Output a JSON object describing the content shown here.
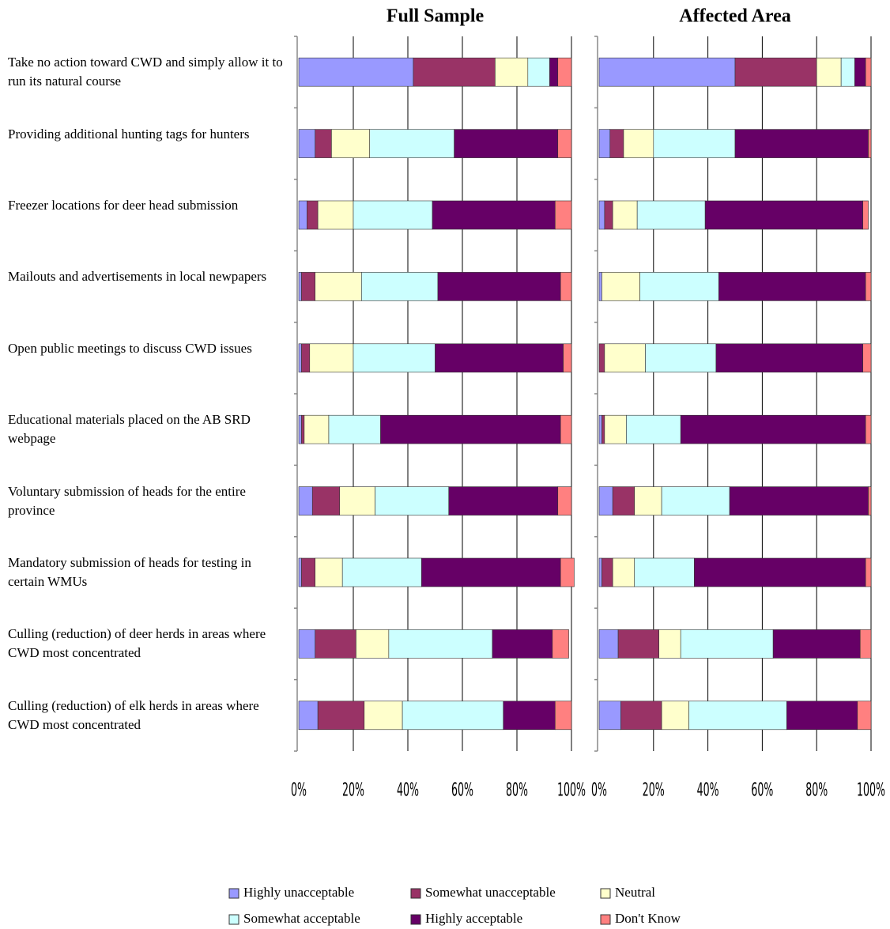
{
  "chart_data": [
    {
      "type": "bar",
      "orientation": "horizontal",
      "stacked": true,
      "title": "Full Sample",
      "categories": [
        "Take no action toward CWD and simply allow it to run its natural course",
        "Providing additional hunting tags for hunters",
        "Freezer locations for deer head submission",
        "Mailouts and advertisements in local newpapers",
        "Open public meetings to discuss CWD issues",
        "Educational materials placed on the AB SRD webpage",
        "Voluntary submission of heads for the entire province",
        "Mandatory submission of heads for testing in certain WMUs",
        "Culling (reduction) of deer herds in areas where CWD most concentrated",
        "Culling (reduction) of elk herds in areas where CWD most concentrated"
      ],
      "series": [
        {
          "name": "Highly unacceptable",
          "color": "#9999ff",
          "values": [
            42,
            6,
            3,
            1,
            1,
            1,
            5,
            1,
            6,
            7
          ]
        },
        {
          "name": "Somewhat unacceptable",
          "color": "#993366",
          "values": [
            30,
            6,
            4,
            5,
            3,
            1,
            10,
            5,
            15,
            17
          ]
        },
        {
          "name": "Neutral",
          "color": "#ffffcc",
          "values": [
            12,
            14,
            13,
            17,
            16,
            9,
            13,
            10,
            12,
            14
          ]
        },
        {
          "name": "Somewhat acceptable",
          "color": "#ccffff",
          "values": [
            8,
            31,
            29,
            28,
            30,
            19,
            27,
            29,
            38,
            37
          ]
        },
        {
          "name": "Highly acceptable",
          "color": "#660066",
          "values": [
            3,
            38,
            45,
            45,
            47,
            66,
            40,
            51,
            22,
            19
          ]
        },
        {
          "name": "Don't Know",
          "color": "#ff8080",
          "values": [
            5,
            5,
            6,
            4,
            3,
            4,
            5,
            5,
            6,
            6
          ]
        }
      ],
      "xlim": [
        0,
        100
      ],
      "xticks": [
        {
          "value": 0,
          "label": "0%"
        },
        {
          "value": 20,
          "label": "20%"
        },
        {
          "value": 40,
          "label": "40%"
        },
        {
          "value": 60,
          "label": "60%"
        },
        {
          "value": 80,
          "label": "80%"
        },
        {
          "value": 100,
          "label": "100%"
        }
      ],
      "grid": true
    },
    {
      "type": "bar",
      "orientation": "horizontal",
      "stacked": true,
      "title": "Affected Area",
      "series": [
        {
          "color": "#9999ff",
          "values": [
            50,
            4,
            2,
            1,
            0,
            1,
            5,
            1,
            7,
            8
          ]
        },
        {
          "color": "#993366",
          "values": [
            30,
            5,
            3,
            0,
            2,
            1,
            8,
            4,
            15,
            15
          ]
        },
        {
          "color": "#ffffcc",
          "values": [
            9,
            11,
            9,
            14,
            15,
            8,
            10,
            8,
            8,
            10
          ]
        },
        {
          "color": "#ccffff",
          "values": [
            5,
            30,
            25,
            29,
            26,
            20,
            25,
            22,
            34,
            36
          ]
        },
        {
          "color": "#660066",
          "values": [
            4,
            49,
            58,
            54,
            54,
            68,
            51,
            63,
            32,
            26
          ]
        },
        {
          "color": "#ff8080",
          "values": [
            2,
            1,
            2,
            2,
            3,
            2,
            1,
            2,
            4,
            5
          ]
        }
      ],
      "xlim": [
        0,
        100
      ],
      "xticks": [
        {
          "value": 0,
          "label": "0%"
        },
        {
          "value": 20,
          "label": "20%"
        },
        {
          "value": 40,
          "label": "40%"
        },
        {
          "value": 60,
          "label": "60%"
        },
        {
          "value": 80,
          "label": "80%"
        },
        {
          "value": 100,
          "label": "100%"
        }
      ],
      "grid": true
    }
  ]
}
